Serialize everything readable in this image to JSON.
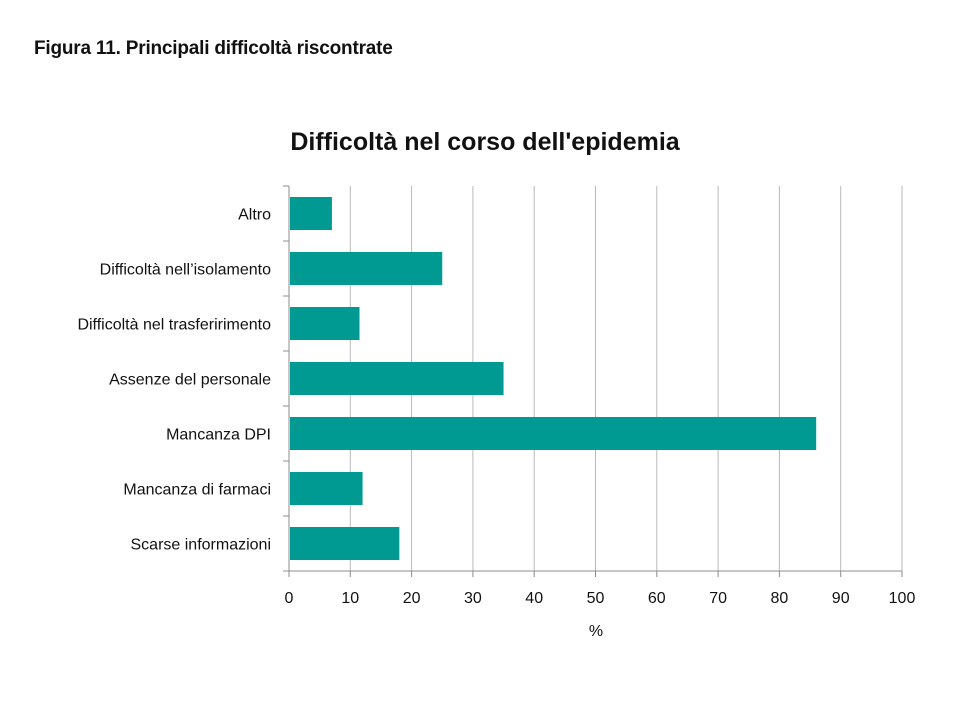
{
  "figure": {
    "caption": "Figura 11. Principali difficoltà riscontrate"
  },
  "chart_data": {
    "type": "bar",
    "orientation": "horizontal",
    "title": "Difficoltà nel corso dell'epidemia",
    "xlabel": "%",
    "ylabel": "",
    "categories": [
      "Altro",
      "Difficoltà nell’isolamento",
      "Difficoltà nel trasferirimento",
      "Assenze del personale",
      "Mancanza DPI",
      "Mancanza di farmaci",
      "Scarse informazioni"
    ],
    "values": [
      7,
      25,
      11.5,
      35,
      86,
      12,
      18
    ],
    "xlim": [
      0,
      100
    ],
    "x_ticks": [
      0,
      10,
      20,
      30,
      40,
      50,
      60,
      70,
      80,
      90,
      100
    ],
    "grid": "vertical",
    "legend": "none",
    "colors": {
      "bar": "#009a93",
      "grid": "#b9b9b9",
      "axis": "#8c8c8c"
    }
  }
}
